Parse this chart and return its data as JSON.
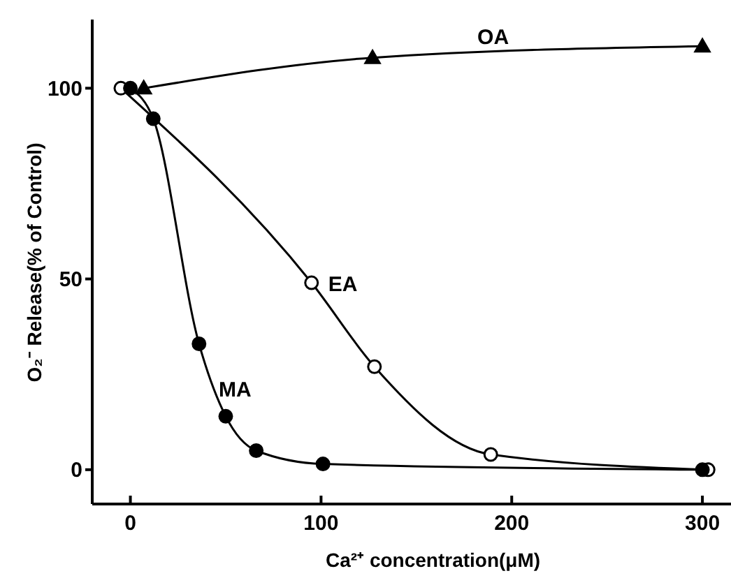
{
  "chart_data": {
    "type": "line",
    "xlabel": "Ca²⁺ concentration(μM)",
    "ylabel": "O₂⁻ Release(% of Control)",
    "xlim": [
      -20,
      315
    ],
    "ylim": [
      -9,
      118
    ],
    "xticks": [
      0,
      100,
      200,
      300
    ],
    "yticks": [
      0,
      50,
      100
    ],
    "grid": false,
    "legend": false,
    "line_style": "solid",
    "series": [
      {
        "name": "OA",
        "color": "#000000",
        "marker": "triangle",
        "x": [
          7,
          127,
          300
        ],
        "values": [
          100,
          108,
          111
        ]
      },
      {
        "name": "EA",
        "color": "#000000",
        "marker": "circle",
        "x": [
          -5,
          95,
          128,
          189,
          303
        ],
        "values": [
          100,
          49,
          27,
          4,
          0
        ]
      },
      {
        "name": "MA",
        "color": "#000000",
        "marker": "circle",
        "x": [
          0,
          12,
          36,
          50,
          66,
          101,
          300
        ],
        "values": [
          100,
          92,
          33,
          14,
          5,
          1.5,
          0
        ]
      }
    ]
  }
}
